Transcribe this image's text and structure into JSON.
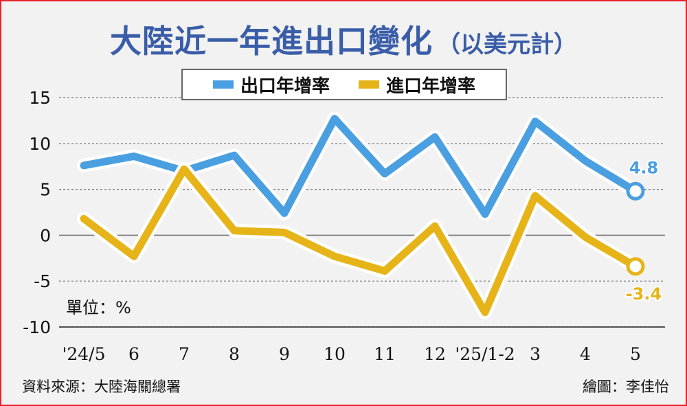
{
  "title": "大陸近一年進出口變化",
  "subtitle": "（以美元計）",
  "unit_label": "單位：%",
  "source": "資料來源：大陸海關總署",
  "credit": "繪圖：李佳怡",
  "colors": {
    "export": "#4a9fe0",
    "import": "#e6b418",
    "grid": "#777777",
    "frame": "#e8212a"
  },
  "chart_data": {
    "type": "line",
    "title": "大陸近一年進出口變化（以美元計）",
    "xlabel": "",
    "ylabel": "單位：%",
    "categories": [
      "'24/5",
      "6",
      "7",
      "8",
      "9",
      "10",
      "11",
      "12",
      "'25/1-2",
      "3",
      "4",
      "5"
    ],
    "yticks": [
      15,
      10,
      5,
      0,
      -5,
      -10
    ],
    "ylim": [
      -10,
      15
    ],
    "grid": true,
    "legend": "top-center",
    "series": [
      {
        "name": "出口年增率",
        "values": [
          7.6,
          8.6,
          7.0,
          8.7,
          2.4,
          12.7,
          6.7,
          10.7,
          2.3,
          12.4,
          8.1,
          4.8
        ],
        "end_label": "4.8"
      },
      {
        "name": "進口年增率",
        "values": [
          1.8,
          -2.3,
          7.2,
          0.5,
          0.3,
          -2.3,
          -3.9,
          1.0,
          -8.4,
          4.3,
          -0.2,
          -3.4
        ],
        "end_label": "-3.4"
      }
    ]
  }
}
